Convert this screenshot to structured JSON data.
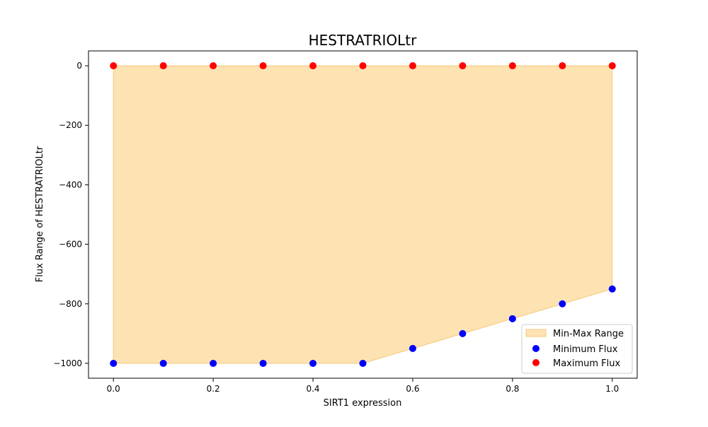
{
  "chart_data": {
    "type": "scatter",
    "title": "HESTRATRIOLtr",
    "xlabel": "SIRT1 expression",
    "ylabel": "Flux Range of HESTRATRIOLtr",
    "xlim": [
      -0.05,
      1.05
    ],
    "ylim": [
      -1050,
      50
    ],
    "xticks": [
      0.0,
      0.2,
      0.4,
      0.6,
      0.8,
      1.0
    ],
    "xtick_labels": [
      "0.0",
      "0.2",
      "0.4",
      "0.6",
      "0.8",
      "1.0"
    ],
    "yticks": [
      0,
      -200,
      -400,
      -600,
      -800,
      -1000
    ],
    "ytick_labels": [
      "0",
      "−200",
      "−400",
      "−600",
      "−800",
      "−1000"
    ],
    "grid": false,
    "legend_position": "bottom-right",
    "x": [
      0.0,
      0.1,
      0.2,
      0.3,
      0.4,
      0.5,
      0.6,
      0.7,
      0.8,
      0.9,
      1.0
    ],
    "series": [
      {
        "name": "Min-Max Range",
        "kind": "fill_between",
        "color": "#fde2b2",
        "edge_color": "#f7c978",
        "lower": [
          -1000,
          -1000,
          -1000,
          -1000,
          -1000,
          -1000,
          -950,
          -900,
          -850,
          -800,
          -750
        ],
        "upper": [
          0,
          0,
          0,
          0,
          0,
          0,
          0,
          0,
          0,
          0,
          0
        ]
      },
      {
        "name": "Minimum Flux",
        "kind": "scatter",
        "color": "#0000ff",
        "values": [
          -1000,
          -1000,
          -1000,
          -1000,
          -1000,
          -1000,
          -950,
          -900,
          -850,
          -800,
          -750
        ]
      },
      {
        "name": "Maximum Flux",
        "kind": "scatter",
        "color": "#ff0000",
        "values": [
          0,
          0,
          0,
          0,
          0,
          0,
          0,
          0,
          0,
          0,
          0
        ]
      }
    ]
  }
}
